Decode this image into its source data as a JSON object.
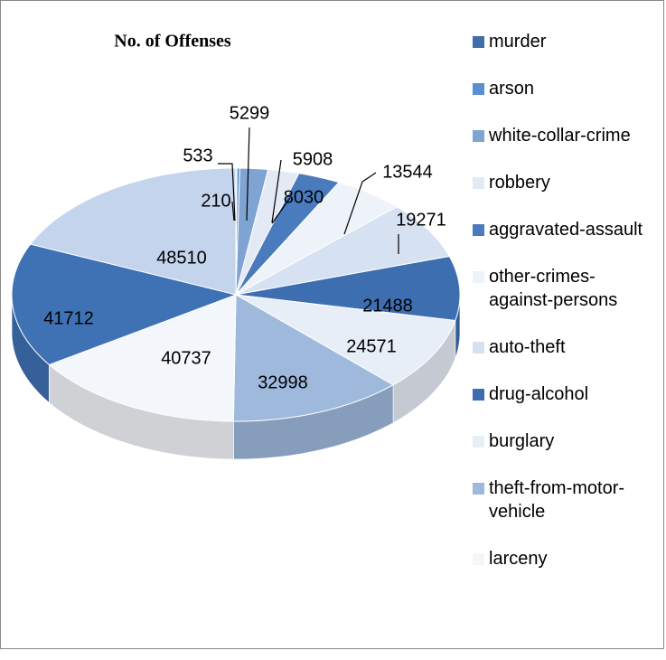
{
  "chart_data": {
    "type": "pie",
    "title": "No. of Offenses",
    "categories": [
      "murder",
      "arson",
      "white-collar-crime",
      "robbery",
      "aggravated-assault",
      "other-crimes-against-persons",
      "auto-theft",
      "drug-alcohol",
      "burglary",
      "theft-from-motor-vehicle",
      "larceny",
      null,
      null
    ],
    "values": [
      210,
      533,
      5299,
      5908,
      8030,
      13544,
      19271,
      21488,
      24571,
      32998,
      40737,
      41712,
      48510
    ],
    "colors": [
      "#3f6ea8",
      "#5b8fd1",
      "#7fa3d3",
      "#e3eaf5",
      "#4a7bbd",
      "#eef2f9",
      "#d6e2f2",
      "#3d6eb0",
      "#e8eef7",
      "#9fb9dd",
      "#f3f6fb",
      "#3f71b5",
      "#c3d4ec"
    ]
  }
}
